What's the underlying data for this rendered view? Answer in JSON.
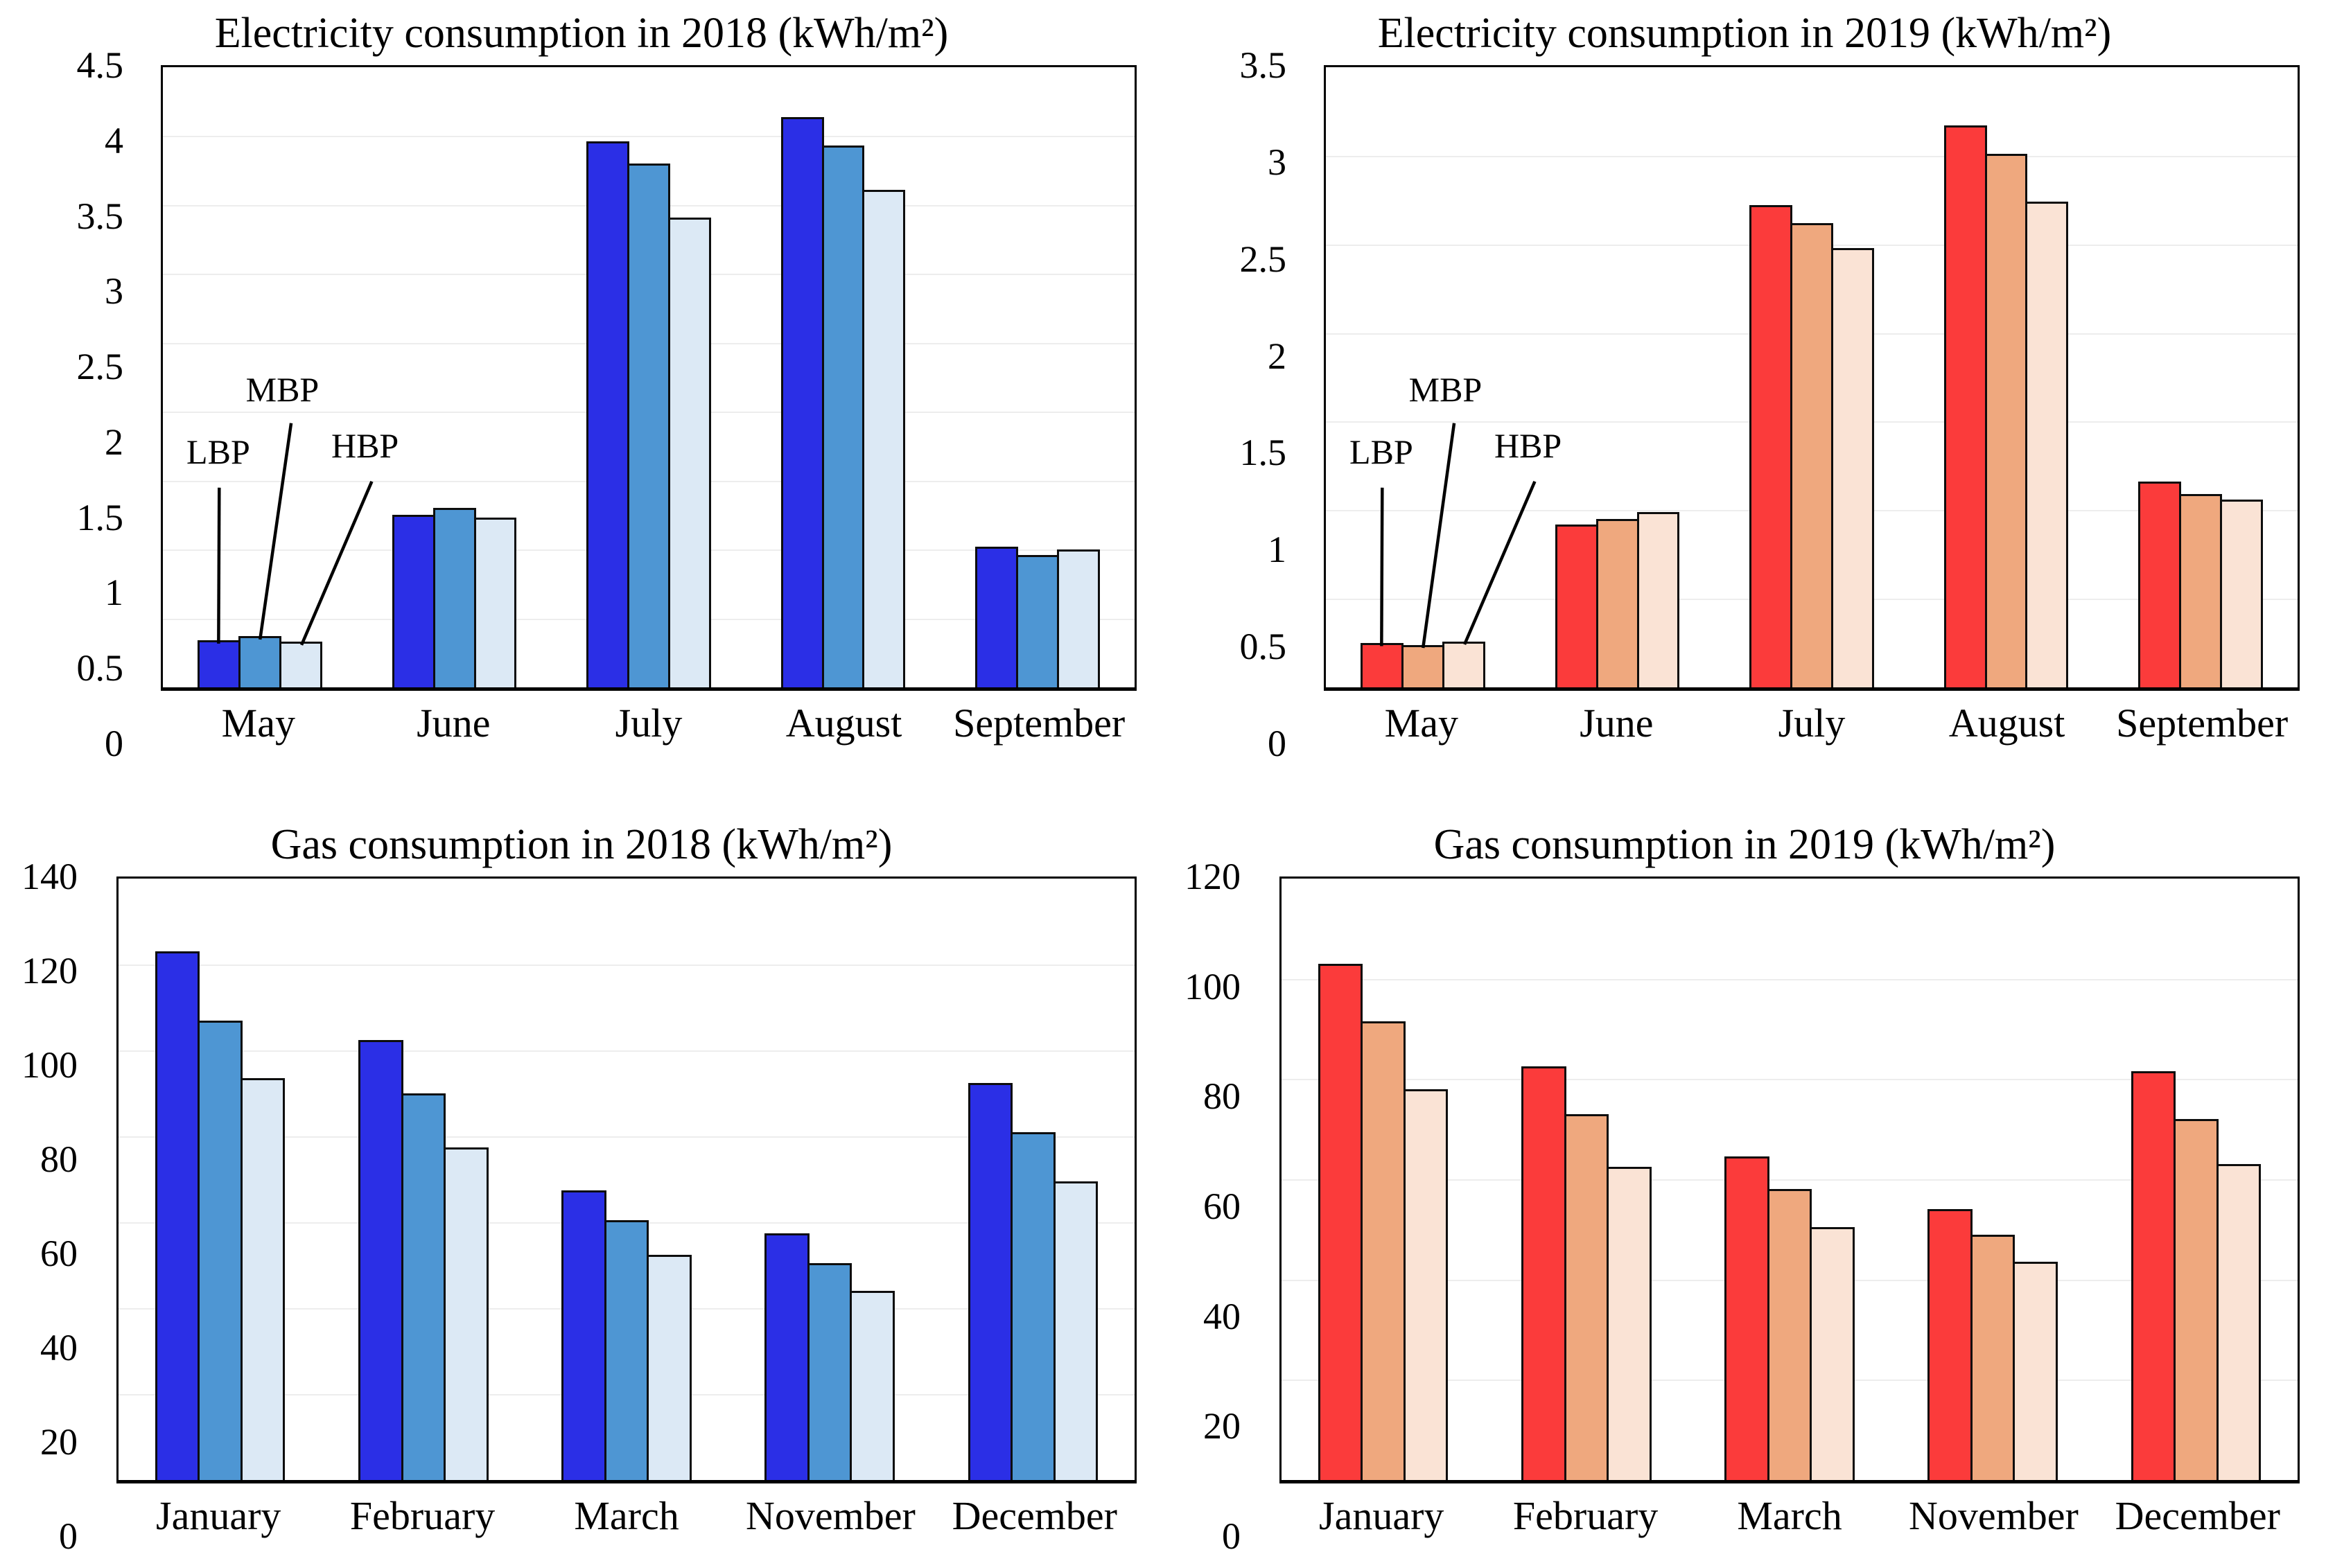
{
  "chart_data": [
    {
      "type": "bar",
      "title": "Electricity consumption in 2018 (kWh/m²)",
      "categories": [
        "May",
        "June",
        "July",
        "August",
        "September"
      ],
      "series": [
        {
          "name": "LBP",
          "values": [
            0.34,
            1.25,
            3.96,
            4.14,
            1.02
          ]
        },
        {
          "name": "MBP",
          "values": [
            0.37,
            1.3,
            3.8,
            3.93,
            0.96
          ]
        },
        {
          "name": "HBP",
          "values": [
            0.33,
            1.23,
            3.41,
            3.61,
            1.0
          ]
        }
      ],
      "colors": [
        "#2b2fe6",
        "#4e96d3",
        "#dce9f5"
      ],
      "ylim": [
        0,
        4.5
      ],
      "yticks": [
        "4.5",
        "4",
        "3.5",
        "3",
        "2.5",
        "2",
        "1.5",
        "1",
        "0.5",
        "0"
      ],
      "xlabel": "",
      "ylabel": "",
      "grid": "horizontal",
      "legend_position": "none",
      "annotations": true,
      "annotation_labels": [
        "LBP",
        "MBP",
        "HBP"
      ]
    },
    {
      "type": "bar",
      "title": "Electricity consumption in 2019 (kWh/m²)",
      "categories": [
        "May",
        "June",
        "July",
        "August",
        "September"
      ],
      "series": [
        {
          "name": "LBP",
          "values": [
            0.25,
            0.92,
            2.72,
            3.17,
            1.16
          ]
        },
        {
          "name": "MBP",
          "values": [
            0.24,
            0.95,
            2.62,
            3.01,
            1.09
          ]
        },
        {
          "name": "HBP",
          "values": [
            0.26,
            0.99,
            2.48,
            2.74,
            1.06
          ]
        }
      ],
      "colors": [
        "#fb3b3b",
        "#efa87e",
        "#fae3d5"
      ],
      "ylim": [
        0,
        3.5
      ],
      "yticks": [
        "3.5",
        "3",
        "2.5",
        "2",
        "1.5",
        "1",
        "0.5",
        "0"
      ],
      "xlabel": "",
      "ylabel": "",
      "grid": "horizontal",
      "legend_position": "none",
      "annotations": true,
      "annotation_labels": [
        "LBP",
        "MBP",
        "HBP"
      ]
    },
    {
      "type": "bar",
      "title": "Gas consumption in 2018 (kWh/m²)",
      "categories": [
        "January",
        "February",
        "March",
        "November",
        "December"
      ],
      "series": [
        {
          "name": "LBP",
          "values": [
            123,
            102.5,
            67.5,
            57.5,
            92.5
          ]
        },
        {
          "name": "MBP",
          "values": [
            107,
            90,
            60.5,
            50.5,
            81
          ]
        },
        {
          "name": "HBP",
          "values": [
            93.5,
            77.5,
            52.5,
            44,
            69.5
          ]
        }
      ],
      "colors": [
        "#2b2fe6",
        "#4e96d3",
        "#dce9f5"
      ],
      "ylim": [
        0,
        140
      ],
      "yticks": [
        "140",
        "120",
        "100",
        "80",
        "60",
        "40",
        "20",
        "0"
      ],
      "xlabel": "",
      "ylabel": "",
      "grid": "horizontal",
      "legend_position": "none",
      "annotations": false,
      "annotation_labels": []
    },
    {
      "type": "bar",
      "title": "Gas consumption in 2019 (kWh/m²)",
      "categories": [
        "January",
        "February",
        "March",
        "November",
        "December"
      ],
      "series": [
        {
          "name": "LBP",
          "values": [
            103,
            82.5,
            64.5,
            54,
            81.5
          ]
        },
        {
          "name": "MBP",
          "values": [
            91.5,
            73,
            58,
            49,
            72
          ]
        },
        {
          "name": "HBP",
          "values": [
            78,
            62.5,
            50.5,
            43.5,
            63
          ]
        }
      ],
      "colors": [
        "#fb3b3b",
        "#efa87e",
        "#fae3d5"
      ],
      "ylim": [
        0,
        120
      ],
      "yticks": [
        "120",
        "100",
        "80",
        "60",
        "40",
        "20",
        "0"
      ],
      "xlabel": "",
      "ylabel": "",
      "grid": "horizontal",
      "legend_position": "none",
      "annotations": false,
      "annotation_labels": []
    }
  ]
}
